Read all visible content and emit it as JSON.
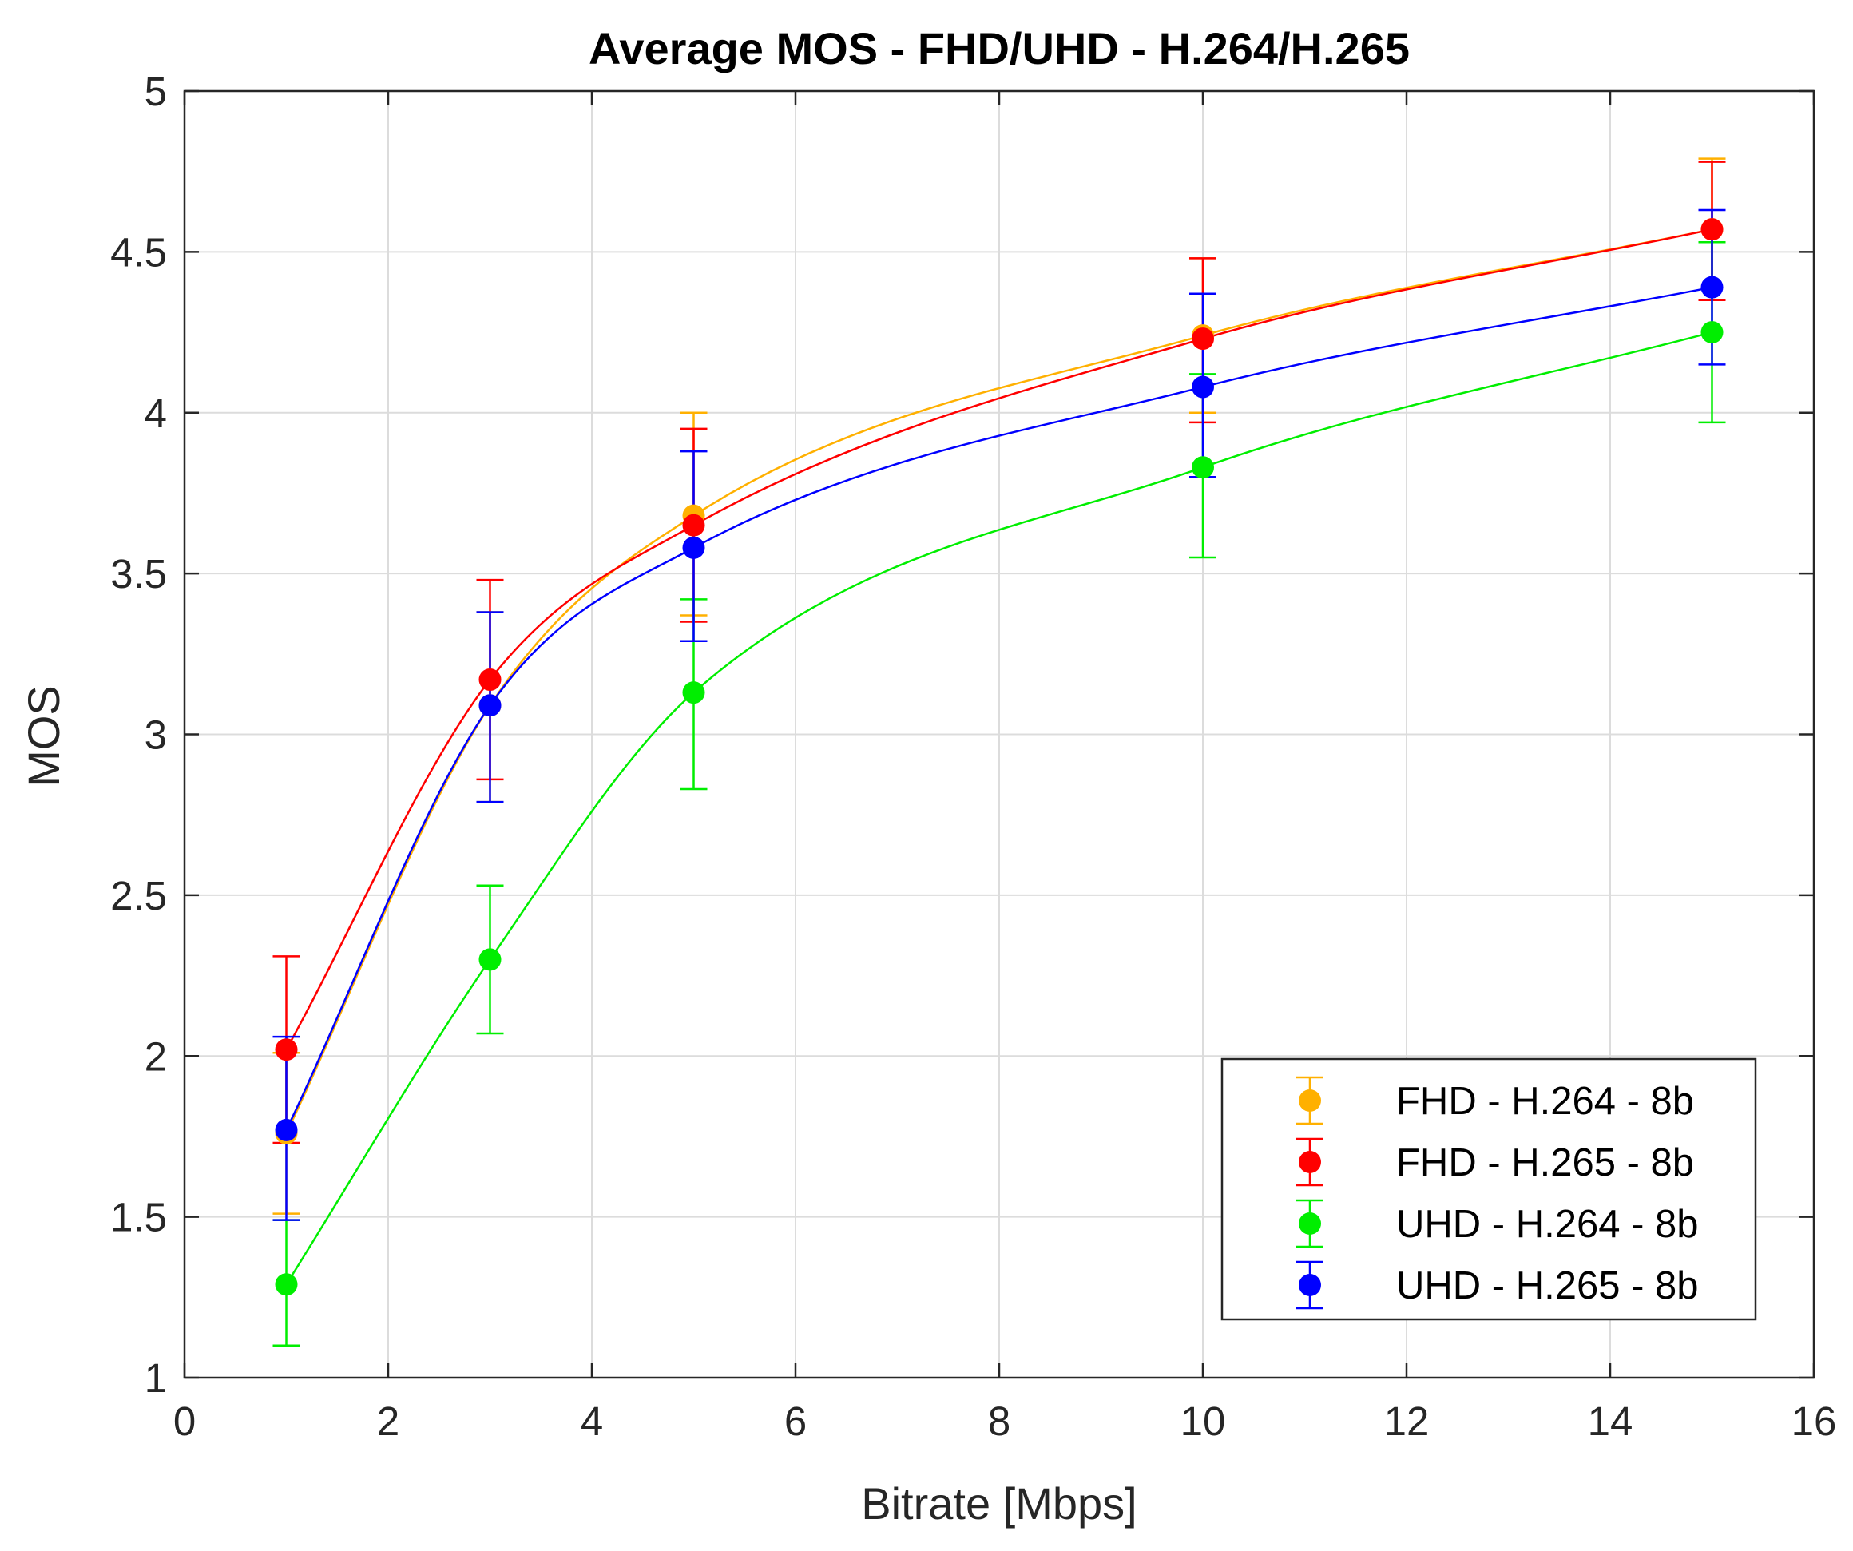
{
  "chart_data": {
    "type": "line",
    "title": "Average MOS - FHD/UHD - H.264/H.265",
    "xlabel": "Bitrate [Mbps]",
    "ylabel": "MOS",
    "xlim": [
      0,
      16
    ],
    "ylim": [
      1,
      5
    ],
    "xticks": [
      0,
      2,
      4,
      6,
      8,
      10,
      12,
      14,
      16
    ],
    "xtick_labels": [
      "0",
      "2",
      "4",
      "6",
      "8",
      "10",
      "12",
      "14",
      "16"
    ],
    "yticks": [
      1,
      1.5,
      2,
      2.5,
      3,
      3.5,
      4,
      4.5,
      5
    ],
    "ytick_labels": [
      "1",
      "1.5",
      "2",
      "2.5",
      "3",
      "3.5",
      "4",
      "4.5",
      "5"
    ],
    "grid": true,
    "legend_position": "bottom-right",
    "x": [
      1,
      3,
      5,
      10,
      15
    ],
    "series": [
      {
        "name": "FHD - H.264 - 8b",
        "color": "#FFB000",
        "values": [
          1.76,
          3.09,
          3.68,
          4.24,
          4.57
        ],
        "err_low": [
          1.51,
          2.79,
          3.37,
          4.0,
          4.35
        ],
        "err_high": [
          2.01,
          3.38,
          4.0,
          4.48,
          4.79
        ]
      },
      {
        "name": "FHD - H.265 - 8b",
        "color": "#FF0000",
        "values": [
          2.02,
          3.17,
          3.65,
          4.23,
          4.57
        ],
        "err_low": [
          1.73,
          2.86,
          3.35,
          3.97,
          4.35
        ],
        "err_high": [
          2.31,
          3.48,
          3.95,
          4.48,
          4.78
        ]
      },
      {
        "name": "UHD - H.264 - 8b",
        "color": "#00EE00",
        "values": [
          1.29,
          2.3,
          3.13,
          3.83,
          4.25
        ],
        "err_low": [
          1.1,
          2.07,
          2.83,
          3.55,
          3.97
        ],
        "err_high": [
          1.49,
          2.53,
          3.42,
          4.12,
          4.53
        ]
      },
      {
        "name": "UHD - H.265 - 8b",
        "color": "#0000FF",
        "values": [
          1.77,
          3.09,
          3.58,
          4.08,
          4.39
        ],
        "err_low": [
          1.49,
          2.79,
          3.29,
          3.8,
          4.15
        ],
        "err_high": [
          2.06,
          3.38,
          3.88,
          4.37,
          4.63
        ]
      }
    ]
  }
}
